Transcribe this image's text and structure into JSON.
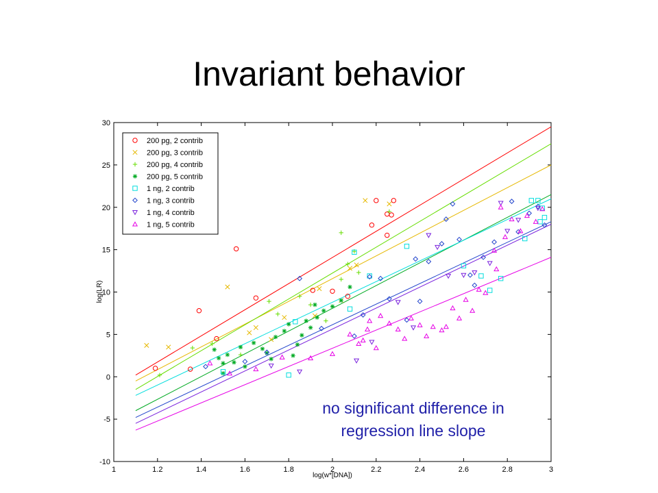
{
  "slide": {
    "title": "Invariant behavior",
    "annotation_line1": "no significant difference in",
    "annotation_line2": "regression line slope"
  },
  "chart_data": {
    "type": "scatter",
    "xlabel": "log(w*[DNA])",
    "ylabel": "log(LR)",
    "xlim": [
      1,
      3
    ],
    "ylim": [
      -10,
      30
    ],
    "xticks": [
      1,
      1.2,
      1.4,
      1.6,
      1.8,
      2,
      2.2,
      2.4,
      2.6,
      2.8,
      3
    ],
    "yticks": [
      -10,
      -5,
      0,
      5,
      10,
      15,
      20,
      25,
      30
    ],
    "grid": false,
    "legend_position": "top-left",
    "series": [
      {
        "name": "200 pg, 2 contrib",
        "color": "#ff0000",
        "marker": "circle",
        "points": [
          [
            1.19,
            1
          ],
          [
            1.35,
            0.9
          ],
          [
            1.39,
            7.8
          ],
          [
            1.47,
            4.5
          ],
          [
            1.56,
            15.1
          ],
          [
            1.65,
            9.3
          ],
          [
            1.91,
            10.2
          ],
          [
            2.0,
            10.1
          ],
          [
            2.07,
            9.5
          ],
          [
            2.18,
            17.9
          ],
          [
            2.2,
            20.8
          ],
          [
            2.25,
            16.7
          ],
          [
            2.25,
            19.2
          ],
          [
            2.27,
            19.1
          ],
          [
            2.28,
            20.8
          ]
        ],
        "fit": [
          [
            1.1,
            0.2
          ],
          [
            3.0,
            29.5
          ]
        ]
      },
      {
        "name": "200 pg, 3 contrib",
        "color": "#e6b800",
        "marker": "x",
        "points": [
          [
            1.15,
            3.7
          ],
          [
            1.25,
            3.5
          ],
          [
            1.52,
            10.6
          ],
          [
            1.62,
            5.2
          ],
          [
            1.65,
            5.8
          ],
          [
            1.72,
            4.4
          ],
          [
            1.78,
            7.0
          ],
          [
            1.92,
            7.2
          ],
          [
            1.94,
            10.4
          ],
          [
            2.04,
            9.0
          ],
          [
            2.08,
            12.8
          ],
          [
            2.11,
            13.2
          ],
          [
            2.15,
            20.8
          ],
          [
            2.26,
            20.4
          ]
        ],
        "fit": [
          [
            1.1,
            -0.5
          ],
          [
            3.0,
            25.0
          ]
        ]
      },
      {
        "name": "200 pg, 4 contrib",
        "color": "#66dd00",
        "marker": "plus",
        "points": [
          [
            1.21,
            0.2
          ],
          [
            1.36,
            3.4
          ],
          [
            1.45,
            3.9
          ],
          [
            1.58,
            2.6
          ],
          [
            1.71,
            8.9
          ],
          [
            1.75,
            7.4
          ],
          [
            1.85,
            9.5
          ],
          [
            1.9,
            8.5
          ],
          [
            1.97,
            6.6
          ],
          [
            2.04,
            17.0
          ],
          [
            2.04,
            11.5
          ],
          [
            2.07,
            13.3
          ],
          [
            2.1,
            14.8
          ],
          [
            2.12,
            12.3
          ],
          [
            2.26,
            19.5
          ]
        ],
        "fit": [
          [
            1.1,
            -1.5
          ],
          [
            3.0,
            27.5
          ]
        ]
      },
      {
        "name": "200 pg, 5 contrib",
        "color": "#00aa22",
        "marker": "star",
        "points": [
          [
            1.46,
            3.2
          ],
          [
            1.48,
            2.2
          ],
          [
            1.5,
            1.6
          ],
          [
            1.52,
            2.6
          ],
          [
            1.5,
            0.4
          ],
          [
            1.55,
            1.7
          ],
          [
            1.58,
            3.5
          ],
          [
            1.6,
            1.2
          ],
          [
            1.64,
            4.0
          ],
          [
            1.68,
            3.3
          ],
          [
            1.7,
            2.8
          ],
          [
            1.74,
            4.7
          ],
          [
            1.78,
            5.4
          ],
          [
            1.8,
            6.2
          ],
          [
            1.82,
            2.5
          ],
          [
            1.84,
            3.8
          ],
          [
            1.86,
            4.9
          ],
          [
            1.88,
            6.6
          ],
          [
            1.9,
            5.8
          ],
          [
            1.93,
            7.0
          ],
          [
            1.96,
            7.8
          ],
          [
            2.0,
            8.3
          ],
          [
            2.04,
            9.0
          ],
          [
            2.08,
            10.6
          ],
          [
            1.72,
            2.1
          ],
          [
            1.92,
            8.5
          ]
        ],
        "fit": [
          [
            1.1,
            -4.0
          ],
          [
            3.0,
            21.5
          ]
        ]
      },
      {
        "name": "1 ng, 2 contrib",
        "color": "#00dddd",
        "marker": "square",
        "points": [
          [
            1.5,
            0.6
          ],
          [
            1.8,
            0.2
          ],
          [
            1.83,
            6.5
          ],
          [
            2.08,
            8.0
          ],
          [
            2.1,
            14.7
          ],
          [
            2.17,
            11.9
          ],
          [
            2.34,
            15.4
          ],
          [
            2.6,
            13.1
          ],
          [
            2.68,
            11.9
          ],
          [
            2.72,
            10.2
          ],
          [
            2.77,
            11.6
          ],
          [
            2.88,
            16.3
          ],
          [
            2.91,
            20.8
          ],
          [
            2.94,
            20.8
          ],
          [
            2.96,
            19.9
          ],
          [
            2.95,
            18.3
          ],
          [
            2.97,
            18.8
          ]
        ],
        "fit": [
          [
            1.1,
            -2.2
          ],
          [
            3.0,
            21.0
          ]
        ]
      },
      {
        "name": "1 ng, 3 contrib",
        "color": "#2244cc",
        "marker": "diamond",
        "points": [
          [
            1.42,
            1.2
          ],
          [
            1.6,
            1.8
          ],
          [
            1.7,
            2.9
          ],
          [
            1.85,
            11.6
          ],
          [
            1.95,
            5.7
          ],
          [
            2.1,
            4.8
          ],
          [
            2.14,
            7.3
          ],
          [
            2.17,
            11.8
          ],
          [
            2.22,
            11.6
          ],
          [
            2.26,
            9.2
          ],
          [
            2.34,
            6.7
          ],
          [
            2.38,
            13.9
          ],
          [
            2.4,
            8.9
          ],
          [
            2.44,
            13.6
          ],
          [
            2.5,
            15.7
          ],
          [
            2.52,
            18.6
          ],
          [
            2.55,
            20.4
          ],
          [
            2.58,
            16.2
          ],
          [
            2.63,
            12.0
          ],
          [
            2.65,
            10.8
          ],
          [
            2.69,
            14.1
          ],
          [
            2.74,
            15.9
          ],
          [
            2.82,
            20.7
          ],
          [
            2.85,
            17.1
          ],
          [
            2.9,
            19.3
          ],
          [
            2.94,
            20.1
          ],
          [
            2.97,
            17.9
          ]
        ],
        "fit": [
          [
            1.1,
            -4.8
          ],
          [
            3.0,
            18.3
          ]
        ]
      },
      {
        "name": "1 ng, 4 contrib",
        "color": "#7a22dd",
        "marker": "triangle-down",
        "points": [
          [
            1.72,
            1.3
          ],
          [
            1.85,
            0.6
          ],
          [
            2.11,
            1.9
          ],
          [
            2.18,
            4.1
          ],
          [
            2.3,
            8.8
          ],
          [
            2.37,
            5.8
          ],
          [
            2.44,
            16.7
          ],
          [
            2.48,
            15.3
          ],
          [
            2.53,
            11.9
          ],
          [
            2.6,
            12.0
          ],
          [
            2.65,
            12.3
          ],
          [
            2.72,
            13.4
          ],
          [
            2.77,
            20.5
          ],
          [
            2.8,
            17.2
          ],
          [
            2.85,
            18.5
          ],
          [
            2.94,
            19.9
          ]
        ],
        "fit": [
          [
            1.1,
            -5.5
          ],
          [
            3.0,
            18.0
          ]
        ]
      },
      {
        "name": "1 ng, 5 contrib",
        "color": "#e600e6",
        "marker": "triangle-up",
        "points": [
          [
            1.44,
            1.6
          ],
          [
            1.53,
            0.4
          ],
          [
            1.65,
            0.9
          ],
          [
            1.77,
            2.3
          ],
          [
            1.9,
            2.2
          ],
          [
            2.0,
            2.7
          ],
          [
            2.08,
            5.0
          ],
          [
            2.12,
            3.9
          ],
          [
            2.14,
            4.3
          ],
          [
            2.16,
            5.6
          ],
          [
            2.17,
            6.6
          ],
          [
            2.2,
            3.4
          ],
          [
            2.22,
            7.2
          ],
          [
            2.26,
            6.3
          ],
          [
            2.3,
            5.6
          ],
          [
            2.33,
            4.5
          ],
          [
            2.36,
            6.9
          ],
          [
            2.4,
            6.1
          ],
          [
            2.43,
            4.8
          ],
          [
            2.46,
            5.9
          ],
          [
            2.5,
            5.5
          ],
          [
            2.52,
            5.9
          ],
          [
            2.55,
            8.1
          ],
          [
            2.58,
            6.9
          ],
          [
            2.61,
            9.1
          ],
          [
            2.64,
            7.8
          ],
          [
            2.67,
            10.3
          ],
          [
            2.7,
            9.9
          ],
          [
            2.75,
            12.7
          ],
          [
            2.79,
            16.5
          ],
          [
            2.82,
            18.6
          ],
          [
            2.86,
            17.2
          ],
          [
            2.89,
            19.0
          ],
          [
            2.93,
            18.3
          ],
          [
            2.96,
            19.8
          ],
          [
            2.77,
            20.0
          ],
          [
            2.74,
            14.9
          ]
        ],
        "fit": [
          [
            1.1,
            -6.3
          ],
          [
            3.0,
            14.1
          ]
        ]
      }
    ]
  }
}
